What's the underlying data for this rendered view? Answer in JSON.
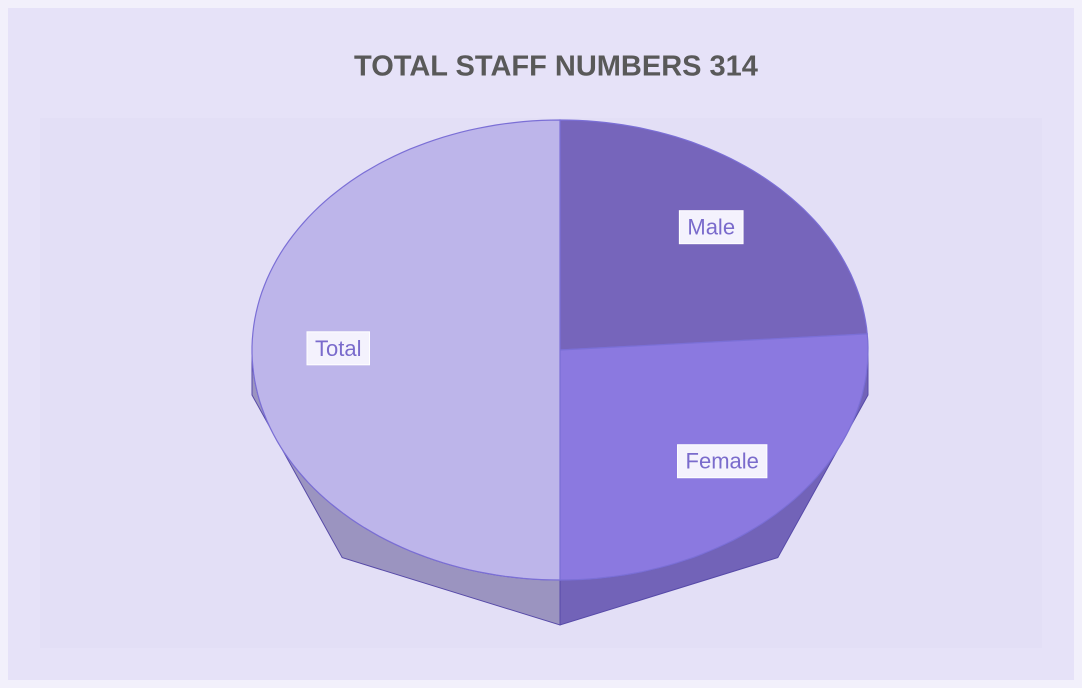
{
  "chart_data": {
    "type": "pie",
    "title": "TOTAL STAFF NUMBERS 314",
    "categories": [
      "Male",
      "Female",
      "Total"
    ],
    "values": [
      150,
      164,
      314
    ],
    "colors": [
      "#7665bb",
      "#8b79e0",
      "#bdb5ea"
    ]
  }
}
